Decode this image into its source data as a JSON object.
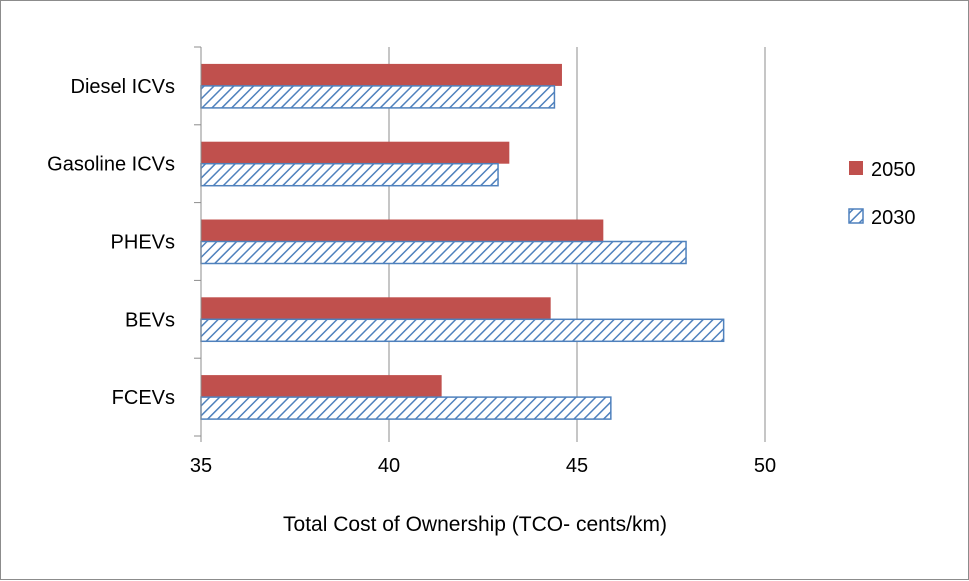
{
  "chart_data": {
    "type": "bar",
    "orientation": "horizontal",
    "title": "",
    "xlabel": "Total Cost of Ownership (TCO- cents/km)",
    "ylabel": "",
    "xlim": [
      35,
      50
    ],
    "xticks": [
      "35",
      "40",
      "45",
      "50"
    ],
    "categories": [
      "Diesel ICVs",
      "Gasoline ICVs",
      "PHEVs",
      "BEVs",
      "FCEVs"
    ],
    "series": [
      {
        "name": "2050",
        "values": [
          44.6,
          43.2,
          45.7,
          44.3,
          41.4
        ],
        "color": "#c0504d",
        "pattern": "solid"
      },
      {
        "name": "2030",
        "values": [
          44.4,
          42.9,
          47.9,
          48.9,
          45.9
        ],
        "color": "#4f81bd",
        "pattern": "hatch"
      }
    ],
    "grid": "vertical",
    "legend": "right"
  }
}
